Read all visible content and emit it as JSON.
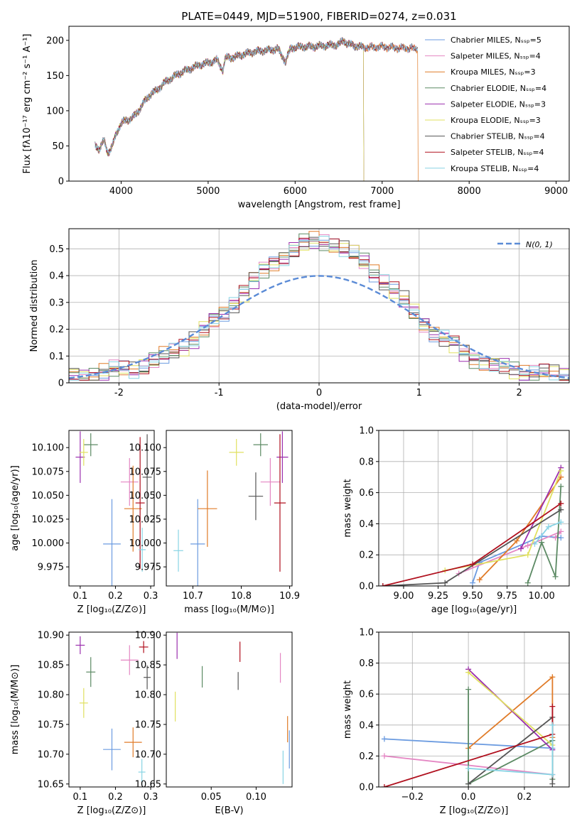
{
  "chart_data": [
    {
      "type": "line",
      "title": "PLATE=0449, MJD=51900, FIBERID=0274, z=0.031",
      "xlabel": "wavelength [Angstrom, rest frame]",
      "ylabel": "Flux [fλ10⁻¹⁷ erg cm⁻² s⁻¹ A⁻¹]",
      "xlim": [
        3400,
        9150
      ],
      "ylim": [
        0,
        220
      ],
      "xticks": [
        4000,
        5000,
        6000,
        7000,
        8000,
        9000
      ],
      "yticks": [
        0,
        50,
        100,
        150,
        200
      ],
      "spectrum": {
        "x": [
          3700,
          3750,
          3800,
          3850,
          3900,
          3950,
          4000,
          4050,
          4100,
          4150,
          4200,
          4250,
          4300,
          4350,
          4400,
          4500,
          4600,
          4700,
          4800,
          4900,
          5000,
          5100,
          5170,
          5200,
          5300,
          5400,
          5500,
          5600,
          5700,
          5800,
          5890,
          5950,
          6000,
          6100,
          6200,
          6300,
          6400,
          6500,
          6560,
          6600,
          6700,
          6800,
          6900,
          7000,
          7100,
          7200,
          7300,
          7400
        ],
        "y": [
          52,
          45,
          58,
          40,
          50,
          70,
          82,
          86,
          88,
          92,
          100,
          110,
          118,
          125,
          128,
          140,
          148,
          155,
          160,
          165,
          168,
          172,
          158,
          175,
          176,
          180,
          183,
          185,
          186,
          188,
          170,
          189,
          190,
          191,
          191,
          192,
          193,
          194,
          200,
          195,
          192,
          190,
          190,
          191,
          190,
          189,
          189,
          188
        ]
      },
      "series": [
        {
          "name": "Chabrier MILES, Nₛₛₚ=5",
          "color": "#6b9be0",
          "cutoff": null
        },
        {
          "name": "Salpeter MILES, Nₛₛₚ=4",
          "color": "#e486c3",
          "cutoff": null
        },
        {
          "name": "Kroupa MILES, Nₛₛₚ=3",
          "color": "#e07b28",
          "cutoff": 7410
        },
        {
          "name": "Chabrier ELODIE, Nₛₛₚ=4",
          "color": "#5c8a64",
          "cutoff": 6790
        },
        {
          "name": "Salpeter ELODIE, Nₛₛₚ=3",
          "color": "#9b2fae",
          "cutoff": 6790
        },
        {
          "name": "Kroupa ELODIE, Nₛₛₚ=3",
          "color": "#e0e060",
          "cutoff": 6790
        },
        {
          "name": "Chabrier STELIB, Nₛₛₚ=4",
          "color": "#555555",
          "cutoff": null
        },
        {
          "name": "Salpeter STELIB, Nₛₛₚ=4",
          "color": "#b0101e",
          "cutoff": null
        },
        {
          "name": "Kroupa STELIB, Nₛₛₚ=4",
          "color": "#88d4e4",
          "cutoff": null
        }
      ]
    },
    {
      "type": "histogram",
      "xlabel": "(data-model)/error",
      "ylabel": "Normed distribution",
      "xlim": [
        -2.5,
        2.5
      ],
      "ylim": [
        0,
        0.575
      ],
      "xticks": [
        -2,
        -1,
        0,
        1,
        2
      ],
      "yticks": [
        0.0,
        0.1,
        0.2,
        0.3,
        0.4,
        0.5
      ],
      "grid": true,
      "legend": "N(0, 1)",
      "legend_placement": "top-right",
      "bin_width": 0.1,
      "hist_profile": [
        0.03,
        0.04,
        0.045,
        0.055,
        0.07,
        0.085,
        0.1,
        0.12,
        0.145,
        0.175,
        0.21,
        0.25,
        0.29,
        0.33,
        0.37,
        0.41,
        0.45,
        0.48,
        0.5,
        0.51,
        0.5,
        0.48,
        0.44,
        0.39,
        0.33,
        0.27,
        0.21,
        0.16,
        0.12,
        0.095,
        0.075,
        0.065,
        0.055,
        0.05,
        0.045,
        0.04,
        0.038,
        0.035
      ]
    },
    {
      "type": "scatter",
      "xlabel": "Z [log₁₀(Z/Z⊙)]",
      "ylabel": "age  [log₁₀(age/yr)]",
      "xlim": [
        0.068,
        0.31
      ],
      "ylim": [
        9.955,
        10.118
      ],
      "xticks": [
        "0.1",
        "0.2",
        "0.3"
      ],
      "yticks": [
        "9.975",
        "10.000",
        "10.025",
        "10.050",
        "10.075",
        "10.100"
      ],
      "points": [
        {
          "x": 0.19,
          "y": 9.999,
          "xe": 0.025,
          "ye": 0.047,
          "color": "#6b9be0"
        },
        {
          "x": 0.24,
          "y": 10.064,
          "xe": 0.025,
          "ye": 0.025,
          "color": "#e486c3"
        },
        {
          "x": 0.25,
          "y": 10.036,
          "xe": 0.025,
          "ye": 0.045,
          "color": "#e07b28"
        },
        {
          "x": 0.13,
          "y": 10.103,
          "xe": 0.02,
          "ye": 0.012,
          "color": "#5c8a64"
        },
        {
          "x": 0.1,
          "y": 10.09,
          "xe": 0.013,
          "ye": 0.027,
          "color": "#9b2fae"
        },
        {
          "x": 0.11,
          "y": 10.095,
          "xe": 0.012,
          "ye": 0.014,
          "color": "#e0e060"
        },
        {
          "x": 0.29,
          "y": 10.069,
          "xe": 0.013,
          "ye": 0.045,
          "color": "#555555"
        },
        {
          "x": 0.27,
          "y": 10.042,
          "xe": 0.013,
          "ye": 0.069,
          "color": "#b0101e"
        },
        {
          "x": 0.276,
          "y": 9.993,
          "xe": 0.01,
          "ye": 0.023,
          "color": "#88d4e4"
        }
      ]
    },
    {
      "type": "scatter",
      "xlabel": "mass [log₁₀(M/M⊙)]",
      "ylabel": "",
      "xlim": [
        10.645,
        10.905
      ],
      "ylim": [
        9.955,
        10.118
      ],
      "xticks": [
        "10.7",
        "10.8",
        "10.9"
      ],
      "yticks": [
        "9.975",
        "10.000",
        "10.025",
        "10.050",
        "10.075",
        "10.100"
      ],
      "points": [
        {
          "x": 10.71,
          "y": 9.999,
          "xe": 0.015,
          "ye": 0.047,
          "color": "#6b9be0"
        },
        {
          "x": 10.86,
          "y": 10.064,
          "xe": 0.02,
          "ye": 0.025,
          "color": "#e486c3"
        },
        {
          "x": 10.73,
          "y": 10.036,
          "xe": 0.02,
          "ye": 0.04,
          "color": "#e07b28"
        },
        {
          "x": 10.84,
          "y": 10.103,
          "xe": 0.015,
          "ye": 0.012,
          "color": "#5c8a64"
        },
        {
          "x": 10.885,
          "y": 10.09,
          "xe": 0.012,
          "ye": 0.027,
          "color": "#9b2fae"
        },
        {
          "x": 10.79,
          "y": 10.095,
          "xe": 0.015,
          "ye": 0.014,
          "color": "#e0e060"
        },
        {
          "x": 10.83,
          "y": 10.049,
          "xe": 0.015,
          "ye": 0.025,
          "color": "#555555"
        },
        {
          "x": 10.88,
          "y": 10.042,
          "xe": 0.012,
          "ye": 0.072,
          "color": "#b0101e"
        },
        {
          "x": 10.67,
          "y": 9.992,
          "xe": 0.01,
          "ye": 0.022,
          "color": "#88d4e4"
        }
      ]
    },
    {
      "type": "line",
      "xlabel": "age  [log₁₀(age/yr)]",
      "ylabel": "mass weight",
      "xlim": [
        8.82,
        10.2
      ],
      "ylim": [
        0,
        1.0
      ],
      "xticks": [
        "9.00",
        "9.25",
        "9.50",
        "9.75",
        "10.00"
      ],
      "yticks": [
        "0.0",
        "0.2",
        "0.4",
        "0.6",
        "0.8",
        "1.0"
      ],
      "grid": true,
      "series": [
        {
          "color": "#6b9be0",
          "x": [
            9.5,
            9.55,
            10.0,
            10.14
          ],
          "y": [
            0.02,
            0.15,
            0.32,
            0.31
          ]
        },
        {
          "color": "#e486c3",
          "x": [
            9.4,
            9.9,
            10.14,
            10.1
          ],
          "y": [
            0.08,
            0.26,
            0.35,
            0.31
          ]
        },
        {
          "color": "#e07b28",
          "x": [
            9.55,
            9.82,
            10.14
          ],
          "y": [
            0.04,
            0.29,
            0.7
          ]
        },
        {
          "color": "#5c8a64",
          "x": [
            9.9,
            10.0,
            10.1,
            10.14
          ],
          "y": [
            0.02,
            0.28,
            0.06,
            0.64
          ]
        },
        {
          "color": "#9b2fae",
          "x": [
            9.85,
            10.14
          ],
          "y": [
            0.24,
            0.76
          ]
        },
        {
          "color": "#e0e060",
          "x": [
            9.3,
            9.9,
            10.14
          ],
          "y": [
            0.1,
            0.2,
            0.74
          ]
        },
        {
          "color": "#555555",
          "x": [
            8.85,
            9.3,
            10.14
          ],
          "y": [
            0.0,
            0.02,
            0.49
          ]
        },
        {
          "color": "#b0101e",
          "x": [
            8.85,
            9.5,
            10.14
          ],
          "y": [
            0.0,
            0.14,
            0.53
          ]
        },
        {
          "color": "#88d4e4",
          "x": [
            9.95,
            10.05,
            10.14
          ],
          "y": [
            0.27,
            0.38,
            0.41
          ]
        }
      ]
    },
    {
      "type": "scatter",
      "xlabel": "Z [log₁₀(Z/Z⊙)]",
      "ylabel": "mass [log₁₀(M/M⊙)]",
      "xlim": [
        0.068,
        0.31
      ],
      "ylim": [
        10.645,
        10.905
      ],
      "xticks": [
        "0.1",
        "0.2",
        "0.3"
      ],
      "yticks": [
        "10.65",
        "10.70",
        "10.75",
        "10.80",
        "10.85",
        "10.90"
      ],
      "points": [
        {
          "x": 0.19,
          "y": 10.708,
          "xe": 0.025,
          "ye": 0.035,
          "color": "#6b9be0"
        },
        {
          "x": 0.24,
          "y": 10.858,
          "xe": 0.025,
          "ye": 0.025,
          "color": "#e486c3"
        },
        {
          "x": 0.25,
          "y": 10.72,
          "xe": 0.025,
          "ye": 0.025,
          "color": "#e07b28"
        },
        {
          "x": 0.13,
          "y": 10.838,
          "xe": 0.013,
          "ye": 0.025,
          "color": "#5c8a64"
        },
        {
          "x": 0.1,
          "y": 10.883,
          "xe": 0.013,
          "ye": 0.015,
          "color": "#9b2fae"
        },
        {
          "x": 0.11,
          "y": 10.786,
          "xe": 0.012,
          "ye": 0.025,
          "color": "#e0e060"
        },
        {
          "x": 0.29,
          "y": 10.829,
          "xe": 0.01,
          "ye": 0.02,
          "color": "#555555"
        },
        {
          "x": 0.28,
          "y": 10.88,
          "xe": 0.013,
          "ye": 0.01,
          "color": "#b0101e"
        },
        {
          "x": 0.275,
          "y": 10.67,
          "xe": 0.01,
          "ye": 0.022,
          "color": "#88d4e4"
        }
      ]
    },
    {
      "type": "scatter",
      "xlabel": "E(B-V)",
      "ylabel": "",
      "xlim": [
        0.0,
        0.14
      ],
      "ylim": [
        10.645,
        10.905
      ],
      "xticks": [
        "0.05",
        "0.10"
      ],
      "yticks": [
        "10.65",
        "10.70",
        "10.75",
        "10.80",
        "10.85",
        "10.90"
      ],
      "points": [
        {
          "x": 0.137,
          "y": 10.708,
          "ye": 0.032,
          "color": "#6b9be0"
        },
        {
          "x": 0.127,
          "y": 10.845,
          "ye": 0.025,
          "color": "#e486c3"
        },
        {
          "x": 0.135,
          "y": 10.742,
          "ye": 0.022,
          "color": "#e07b28"
        },
        {
          "x": 0.04,
          "y": 10.83,
          "ye": 0.018,
          "color": "#5c8a64"
        },
        {
          "x": 0.012,
          "y": 10.882,
          "ye": 0.022,
          "color": "#9b2fae"
        },
        {
          "x": 0.01,
          "y": 10.78,
          "ye": 0.025,
          "color": "#e0e060"
        },
        {
          "x": 0.08,
          "y": 10.823,
          "ye": 0.015,
          "color": "#555555"
        },
        {
          "x": 0.082,
          "y": 10.872,
          "ye": 0.017,
          "color": "#b0101e"
        },
        {
          "x": 0.13,
          "y": 10.678,
          "ye": 0.028,
          "color": "#88d4e4"
        }
      ]
    },
    {
      "type": "line",
      "xlabel": "Z [log₁₀(Z/Z⊙)]",
      "ylabel": "mass weight",
      "xlim": [
        -0.32,
        0.36
      ],
      "ylim": [
        0,
        1.0
      ],
      "xticks": [
        "−0.2",
        "0.0",
        "0.2"
      ],
      "yticks": [
        "0.0",
        "0.2",
        "0.4",
        "0.6",
        "0.8",
        "1.0"
      ],
      "grid": true,
      "series": [
        {
          "color": "#6b9be0",
          "x": [
            -0.3,
            0.3
          ],
          "y": [
            0.31,
            0.25
          ]
        },
        {
          "color": "#e486c3",
          "x": [
            -0.3,
            0.3
          ],
          "y": [
            0.2,
            0.08
          ]
        },
        {
          "color": "#e07b28",
          "x": [
            0.0,
            0.3,
            0.3
          ],
          "y": [
            0.25,
            0.71,
            0.32
          ]
        },
        {
          "color": "#5c8a64",
          "x": [
            0.0,
            0.0,
            0.3,
            0.3
          ],
          "y": [
            0.63,
            0.02,
            0.3,
            0.05
          ]
        },
        {
          "color": "#9b2fae",
          "x": [
            0.0,
            0.3
          ],
          "y": [
            0.76,
            0.24
          ]
        },
        {
          "color": "#e0e060",
          "x": [
            0.0,
            0.3
          ],
          "y": [
            0.74,
            0.27
          ]
        },
        {
          "color": "#555555",
          "x": [
            0.0,
            0.3,
            0.3
          ],
          "y": [
            0.02,
            0.45,
            0.02
          ]
        },
        {
          "color": "#b0101e",
          "x": [
            -0.3,
            0.3,
            0.3
          ],
          "y": [
            0.0,
            0.34,
            0.52
          ]
        },
        {
          "color": "#88d4e4",
          "x": [
            0.0,
            0.3,
            0.3
          ],
          "y": [
            0.12,
            0.08,
            0.4
          ]
        }
      ]
    }
  ]
}
